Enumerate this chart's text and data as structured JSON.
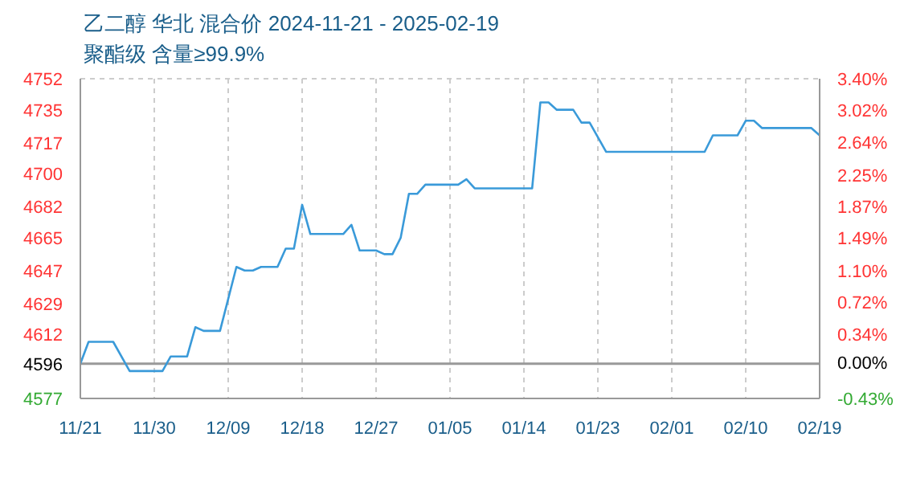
{
  "chart_data": {
    "type": "line",
    "title": "乙二醇 华北 混合价 2024-11-21 - 2025-02-19",
    "subtitle": "聚酯级 含量≥99.9%",
    "x": [
      "2024-11-21",
      "2024-11-22",
      "2024-11-25",
      "2024-11-27",
      "2024-12-01",
      "2024-12-02",
      "2024-12-04",
      "2024-12-05",
      "2024-12-06",
      "2024-12-08",
      "2024-12-10",
      "2024-12-11",
      "2024-12-12",
      "2024-12-13",
      "2024-12-15",
      "2024-12-16",
      "2024-12-17",
      "2024-12-18",
      "2024-12-19",
      "2024-12-23",
      "2024-12-24",
      "2024-12-25",
      "2024-12-27",
      "2024-12-28",
      "2024-12-29",
      "2024-12-30",
      "2024-12-31",
      "2025-01-01",
      "2025-01-02",
      "2025-01-06",
      "2025-01-07",
      "2025-01-08",
      "2025-01-15",
      "2025-01-16",
      "2025-01-17",
      "2025-01-18",
      "2025-01-20",
      "2025-01-21",
      "2025-01-22",
      "2025-01-24",
      "2025-02-05",
      "2025-02-06",
      "2025-02-09",
      "2025-02-10",
      "2025-02-11",
      "2025-02-12",
      "2025-02-18",
      "2025-02-19"
    ],
    "series": [
      {
        "color": "#3a9ad9",
        "values": [
          4596,
          4608,
          4608,
          4592,
          4592,
          4600,
          4600,
          4616,
          4614,
          4614,
          4649,
          4647,
          4647,
          4649,
          4649,
          4659,
          4659,
          4683,
          4667,
          4667,
          4672,
          4658,
          4658,
          4656,
          4656,
          4665,
          4689,
          4689,
          4694,
          4694,
          4697,
          4692,
          4692,
          4739,
          4739,
          4735,
          4735,
          4728,
          4728,
          4712,
          4712,
          4721,
          4721,
          4729,
          4729,
          4725,
          4725,
          4721
        ]
      }
    ],
    "xlim": [
      "2024-11-21",
      "2025-02-19"
    ],
    "xticks": [
      {
        "value": "2024-11-21",
        "label": "11/21"
      },
      {
        "value": "2024-11-30",
        "label": "11/30"
      },
      {
        "value": "2024-12-09",
        "label": "12/09"
      },
      {
        "value": "2024-12-18",
        "label": "12/18"
      },
      {
        "value": "2024-12-27",
        "label": "12/27"
      },
      {
        "value": "2025-01-05",
        "label": "01/05"
      },
      {
        "value": "2025-01-14",
        "label": "01/14"
      },
      {
        "value": "2025-01-23",
        "label": "01/23"
      },
      {
        "value": "2025-02-01",
        "label": "02/01"
      },
      {
        "value": "2025-02-10",
        "label": "02/10"
      },
      {
        "value": "2025-02-19",
        "label": "02/19"
      }
    ],
    "ylim": [
      4577,
      4752
    ],
    "yticks": [
      4577,
      4596,
      4612,
      4629,
      4647,
      4665,
      4682,
      4700,
      4717,
      4735,
      4752
    ],
    "y2lim": [
      -0.43,
      3.4
    ],
    "y2ticks": [
      {
        "value": -0.43,
        "label": "-0.43%"
      },
      {
        "value": 0,
        "label": "0.00%"
      },
      {
        "value": 0.34,
        "label": "0.34%"
      },
      {
        "value": 0.72,
        "label": "0.72%"
      },
      {
        "value": 1.1,
        "label": "1.10%"
      },
      {
        "value": 1.49,
        "label": "1.49%"
      },
      {
        "value": 1.87,
        "label": "1.87%"
      },
      {
        "value": 2.25,
        "label": "2.25%"
      },
      {
        "value": 2.64,
        "label": "2.64%"
      },
      {
        "value": 3.02,
        "label": "3.02%"
      },
      {
        "value": 3.4,
        "label": "3.40%"
      }
    ],
    "ref_lines": [
      {
        "axis": "y",
        "value": 4596,
        "color": "#999999",
        "line_style": "solid"
      }
    ],
    "grid": true,
    "marker": "none",
    "line_style": "solid"
  }
}
